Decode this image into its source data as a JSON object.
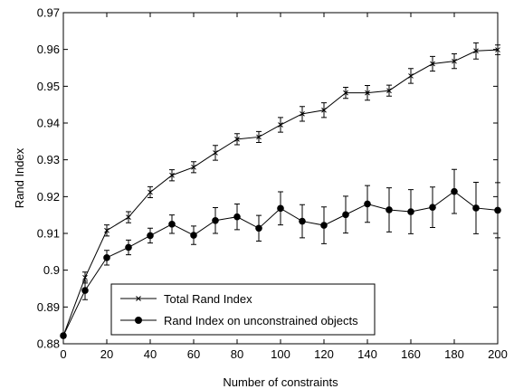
{
  "chart_data": {
    "type": "line",
    "title": "",
    "xlabel": "Number of constraints",
    "ylabel": "Rand Index",
    "xlim": [
      0,
      200
    ],
    "ylim": [
      0.88,
      0.97
    ],
    "xticks": [
      "0",
      "20",
      "40",
      "60",
      "80",
      "100",
      "120",
      "140",
      "160",
      "180",
      "200"
    ],
    "yticks": [
      "0.88",
      "0.89",
      "0.9",
      "0.91",
      "0.92",
      "0.93",
      "0.94",
      "0.95",
      "0.96",
      "0.97"
    ],
    "grid": false,
    "legend_position": "bottom-left",
    "x": [
      0,
      10,
      20,
      30,
      40,
      50,
      60,
      70,
      80,
      90,
      100,
      110,
      120,
      130,
      140,
      150,
      160,
      170,
      180,
      190,
      200
    ],
    "series": [
      {
        "name": "Total Rand Index",
        "marker": "x",
        "color": "#000000",
        "values": [
          0.8822,
          0.898,
          0.9108,
          0.9144,
          0.9212,
          0.9258,
          0.928,
          0.9319,
          0.9356,
          0.9362,
          0.9395,
          0.9425,
          0.9435,
          0.9482,
          0.9482,
          0.9488,
          0.9528,
          0.9561,
          0.9568,
          0.9596,
          0.9599
        ],
        "errors": [
          0.0005,
          0.0015,
          0.0015,
          0.0015,
          0.0015,
          0.0015,
          0.0015,
          0.002,
          0.0015,
          0.0015,
          0.002,
          0.002,
          0.002,
          0.0015,
          0.002,
          0.0015,
          0.002,
          0.002,
          0.002,
          0.0022,
          0.0013
        ]
      },
      {
        "name": "Rand Index on unconstrained objects",
        "marker": "o",
        "color": "#000000",
        "values": [
          0.8822,
          0.8945,
          0.9034,
          0.9062,
          0.9094,
          0.9125,
          0.9095,
          0.9135,
          0.9145,
          0.9114,
          0.9168,
          0.9133,
          0.9122,
          0.9151,
          0.918,
          0.9164,
          0.9159,
          0.9171,
          0.9214,
          0.9169,
          0.9163
        ],
        "errors": [
          0.0005,
          0.0025,
          0.002,
          0.002,
          0.002,
          0.0025,
          0.0025,
          0.0035,
          0.0035,
          0.0035,
          0.0045,
          0.0045,
          0.005,
          0.005,
          0.005,
          0.006,
          0.006,
          0.0055,
          0.006,
          0.007,
          0.0075
        ]
      }
    ]
  }
}
